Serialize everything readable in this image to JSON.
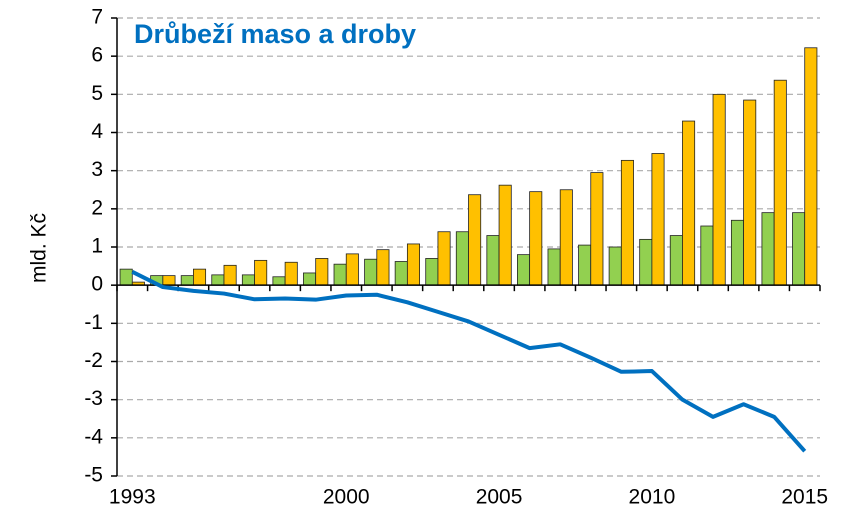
{
  "chart_data": {
    "type": "bar",
    "title": "Drůbeží maso a droby",
    "y_label": "mld. Kč",
    "categories": [
      "1993",
      null,
      null,
      null,
      null,
      null,
      null,
      "2000",
      null,
      null,
      null,
      null,
      "2005",
      null,
      null,
      null,
      null,
      "2010",
      null,
      null,
      null,
      null,
      "2015"
    ],
    "series": [
      {
        "type": "bar",
        "color": "#92d050",
        "values": [
          0.42,
          0.25,
          0.25,
          0.27,
          0.27,
          0.22,
          0.32,
          0.55,
          0.68,
          0.62,
          0.7,
          1.4,
          1.3,
          0.8,
          0.95,
          1.05,
          1.0,
          1.2,
          1.3,
          1.55,
          1.7,
          1.9,
          1.9
        ]
      },
      {
        "type": "bar",
        "color": "#ffc000",
        "values": [
          0.08,
          0.25,
          0.42,
          0.52,
          0.65,
          0.6,
          0.7,
          0.82,
          0.93,
          1.08,
          1.4,
          2.37,
          2.62,
          2.45,
          2.5,
          2.95,
          3.27,
          3.45,
          4.3,
          5.0,
          4.85,
          5.37,
          6.22
        ]
      },
      {
        "type": "line",
        "color": "#0070c0",
        "values": [
          0.35,
          -0.05,
          -0.15,
          -0.22,
          -0.37,
          -0.35,
          -0.38,
          -0.27,
          -0.25,
          -0.45,
          -0.7,
          -0.95,
          -1.3,
          -1.65,
          -1.55,
          -1.9,
          -2.27,
          -2.25,
          -3.0,
          -3.45,
          -3.12,
          -3.45,
          -4.35
        ]
      }
    ],
    "ylim": [
      -5,
      7
    ],
    "yticks": [
      -5,
      -4,
      -3,
      -2,
      -1,
      0,
      1,
      2,
      3,
      4,
      5,
      6,
      7
    ],
    "grid": true
  }
}
